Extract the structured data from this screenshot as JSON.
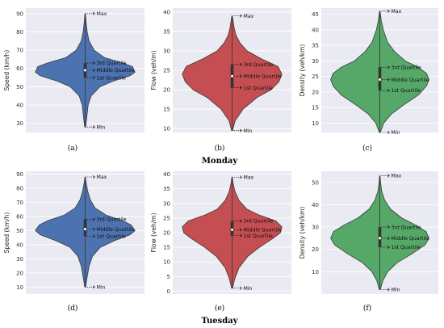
{
  "days": [
    "Monday",
    "Tuesday"
  ],
  "chart_data": [
    {
      "type": "violin",
      "panel": "(a)",
      "ylabel": "Speed (km/h)",
      "ylim": [
        25,
        93
      ],
      "yticks": [
        30,
        40,
        50,
        60,
        70,
        80,
        90
      ],
      "color": "#4c72b0",
      "stats": {
        "min": 28,
        "q1": 55,
        "median": 59,
        "q3": 63,
        "max": 90
      },
      "profile": [
        [
          28,
          0.01
        ],
        [
          33,
          0.03
        ],
        [
          40,
          0.06
        ],
        [
          45,
          0.12
        ],
        [
          50,
          0.3
        ],
        [
          53,
          0.55
        ],
        [
          56,
          0.9
        ],
        [
          58,
          1.0
        ],
        [
          61,
          0.95
        ],
        [
          63,
          0.75
        ],
        [
          66,
          0.38
        ],
        [
          70,
          0.18
        ],
        [
          75,
          0.08
        ],
        [
          80,
          0.04
        ],
        [
          85,
          0.02
        ],
        [
          90,
          0.005
        ]
      ],
      "annotations": [
        "Max",
        "3rd Quartile",
        "Middle Quartile",
        "1st Quartile",
        "Min"
      ]
    },
    {
      "type": "violin",
      "panel": "(b)",
      "ylabel": "Flow (veh/m)",
      "ylim": [
        9,
        41
      ],
      "yticks": [
        10,
        15,
        20,
        25,
        30,
        35,
        40
      ],
      "color": "#c44e52",
      "stats": {
        "min": 9.5,
        "q1": 20.5,
        "median": 23.5,
        "q3": 26.5,
        "max": 39
      },
      "profile": [
        [
          9.5,
          0.01
        ],
        [
          12,
          0.06
        ],
        [
          15,
          0.22
        ],
        [
          18,
          0.5
        ],
        [
          20,
          0.78
        ],
        [
          22,
          0.94
        ],
        [
          24,
          1.0
        ],
        [
          26,
          0.92
        ],
        [
          28,
          0.58
        ],
        [
          30,
          0.3
        ],
        [
          32,
          0.16
        ],
        [
          34,
          0.08
        ],
        [
          36,
          0.04
        ],
        [
          39,
          0.005
        ]
      ],
      "annotations": [
        "Max",
        "3rd Quartile",
        "Middle Quartile",
        "1st Quartile",
        "Min"
      ]
    },
    {
      "type": "violin",
      "panel": "(c)",
      "ylabel": "Density (veh/km)",
      "ylim": [
        7,
        47
      ],
      "yticks": [
        10,
        15,
        20,
        25,
        30,
        35,
        40,
        45
      ],
      "color": "#55a868",
      "stats": {
        "min": 7,
        "q1": 20.5,
        "median": 24,
        "q3": 28,
        "max": 46
      },
      "profile": [
        [
          7,
          0.01
        ],
        [
          10,
          0.08
        ],
        [
          13,
          0.24
        ],
        [
          16,
          0.5
        ],
        [
          19,
          0.78
        ],
        [
          22,
          0.95
        ],
        [
          24,
          1.0
        ],
        [
          26,
          0.95
        ],
        [
          28,
          0.78
        ],
        [
          30,
          0.52
        ],
        [
          33,
          0.3
        ],
        [
          36,
          0.16
        ],
        [
          40,
          0.07
        ],
        [
          43,
          0.03
        ],
        [
          46,
          0.005
        ]
      ],
      "annotations": [
        "Max",
        "3rd Quartile",
        "Middle Quartile",
        "1st Quartile",
        "Min"
      ]
    },
    {
      "type": "violin",
      "panel": "(d)",
      "ylabel": "Speed (km/h)",
      "ylim": [
        5,
        92
      ],
      "yticks": [
        10,
        20,
        30,
        40,
        50,
        60,
        70,
        80,
        90
      ],
      "color": "#4c72b0",
      "stats": {
        "min": 10,
        "q1": 46,
        "median": 51,
        "q3": 58,
        "max": 88
      },
      "profile": [
        [
          10,
          0.01
        ],
        [
          15,
          0.03
        ],
        [
          25,
          0.08
        ],
        [
          32,
          0.15
        ],
        [
          38,
          0.3
        ],
        [
          43,
          0.6
        ],
        [
          47,
          0.9
        ],
        [
          50,
          1.0
        ],
        [
          54,
          0.92
        ],
        [
          57,
          0.75
        ],
        [
          61,
          0.42
        ],
        [
          66,
          0.2
        ],
        [
          72,
          0.1
        ],
        [
          78,
          0.05
        ],
        [
          84,
          0.02
        ],
        [
          88,
          0.005
        ]
      ],
      "annotations": [
        "Max",
        "3rd Quartile",
        "Middle Quartile",
        "1st Quartile",
        "Min"
      ]
    },
    {
      "type": "violin",
      "panel": "(e)",
      "ylabel": "Flow (veh/m)",
      "ylim": [
        -1,
        41
      ],
      "yticks": [
        0,
        5,
        10,
        15,
        20,
        25,
        30,
        35,
        40
      ],
      "color": "#c44e52",
      "stats": {
        "min": 1,
        "q1": 19,
        "median": 21,
        "q3": 24,
        "max": 39
      },
      "profile": [
        [
          1,
          0.01
        ],
        [
          4,
          0.05
        ],
        [
          8,
          0.14
        ],
        [
          12,
          0.32
        ],
        [
          15,
          0.55
        ],
        [
          18,
          0.82
        ],
        [
          20,
          0.97
        ],
        [
          22,
          1.0
        ],
        [
          24,
          0.88
        ],
        [
          26,
          0.55
        ],
        [
          28,
          0.3
        ],
        [
          31,
          0.14
        ],
        [
          34,
          0.06
        ],
        [
          37,
          0.02
        ],
        [
          39,
          0.005
        ]
      ],
      "annotations": [
        "Max",
        "3rd Quartile",
        "Middle Quartile",
        "1st Quartile",
        "Min"
      ]
    },
    {
      "type": "violin",
      "panel": "(f)",
      "ylabel": "Density (veh/km)",
      "ylim": [
        0,
        55
      ],
      "yticks": [
        10,
        20,
        30,
        40,
        50
      ],
      "color": "#55a868",
      "stats": {
        "min": 2,
        "q1": 21,
        "median": 25,
        "q3": 30,
        "max": 53
      },
      "profile": [
        [
          2,
          0.01
        ],
        [
          6,
          0.06
        ],
        [
          10,
          0.16
        ],
        [
          14,
          0.35
        ],
        [
          18,
          0.65
        ],
        [
          22,
          0.92
        ],
        [
          25,
          1.0
        ],
        [
          28,
          0.94
        ],
        [
          31,
          0.72
        ],
        [
          34,
          0.45
        ],
        [
          38,
          0.22
        ],
        [
          42,
          0.1
        ],
        [
          46,
          0.04
        ],
        [
          50,
          0.015
        ],
        [
          53,
          0.005
        ]
      ],
      "annotations": [
        "Max",
        "3rd Quartile",
        "Middle Quartile",
        "1st Quartile",
        "Min"
      ]
    }
  ]
}
